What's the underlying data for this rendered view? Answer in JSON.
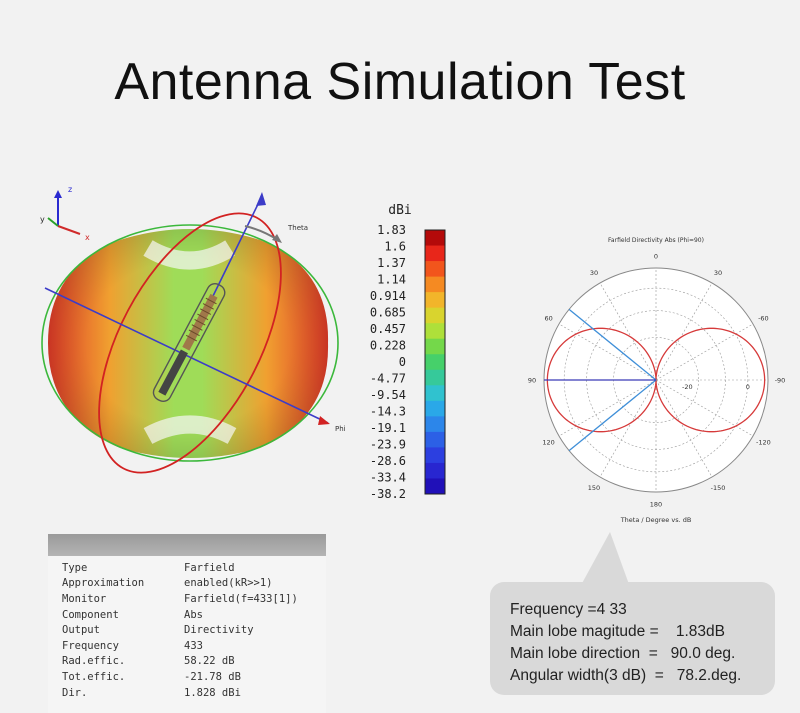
{
  "title": "Antenna Simulation Test",
  "view3d": {
    "axes_labels": {
      "z": "z",
      "y": "y",
      "x": "x"
    },
    "theta_label": "Theta",
    "phi_label": "Phi"
  },
  "colorbar": {
    "unit": "dBi",
    "ticks": [
      "1.83",
      "1.6",
      "1.37",
      "1.14",
      "0.914",
      "0.685",
      "0.457",
      "0.228",
      "0",
      "-4.77",
      "-9.54",
      "-14.3",
      "-19.1",
      "-23.9",
      "-28.6",
      "-33.4",
      "-38.2"
    ],
    "colors": [
      "#b40a0a",
      "#e8261a",
      "#f2551c",
      "#f58a22",
      "#f2b52a",
      "#d9d42e",
      "#aee03a",
      "#74d84a",
      "#46d06a",
      "#36c99a",
      "#30c2cf",
      "#2aa8e8",
      "#2c86ea",
      "#2c60e6",
      "#2c3fe0",
      "#2826d0",
      "#2010b8"
    ]
  },
  "polar": {
    "title": "Farfield Directivity Abs (Phi=90)",
    "angle_labels": {
      "top": "0",
      "tl": "30",
      "tr": "30",
      "ul": "60",
      "ur": "-60",
      "left": "90",
      "right": "-90",
      "ll": "120",
      "lr": "-120",
      "bl": "150",
      "br": "-150",
      "bottom": "180"
    },
    "radial_labels": [
      "-20",
      "0"
    ],
    "xlabel": "Theta / Degree vs. dB",
    "colors": {
      "pattern": "#d63a3a",
      "beam": "#3f8fd8",
      "axis": "#3b3bb8"
    },
    "main_lobe_deg": 90.0,
    "beamwidth_deg": 78.2,
    "max_dbi": 1.83
  },
  "params": {
    "rows": [
      {
        "key": "Type",
        "value": "Farfield"
      },
      {
        "key": "Approximation",
        "value": "enabled(kR>>1)"
      },
      {
        "key": "Monitor",
        "value": "Farfield(f=433[1])"
      },
      {
        "key": "Component",
        "value": "Abs"
      },
      {
        "key": "Output",
        "value": "Directivity"
      },
      {
        "key": "Frequency",
        "value": "433"
      },
      {
        "key": "Rad.effic.",
        "value": "58.22 dB"
      },
      {
        "key": "Tot.effic.",
        "value": "-21.78 dB"
      },
      {
        "key": "Dir.",
        "value": "1.828 dBi"
      }
    ]
  },
  "summary": {
    "frequency": "Frequency =4 33",
    "magnitude": "Main lobe magitude =    1.83dB",
    "direction": "Main lobe direction  =   90.0 deg.",
    "width": "Angular width(3 dB)  =   78.2.deg."
  }
}
